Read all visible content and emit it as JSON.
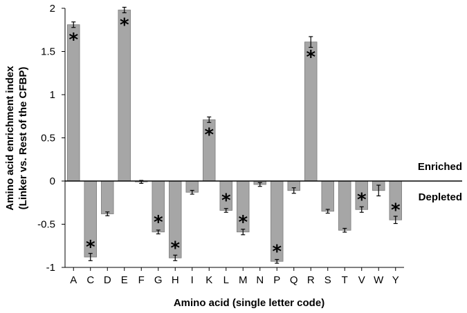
{
  "chart_data": {
    "type": "bar",
    "categories": [
      "A",
      "C",
      "D",
      "E",
      "F",
      "G",
      "H",
      "I",
      "K",
      "L",
      "M",
      "N",
      "P",
      "Q",
      "R",
      "S",
      "T",
      "V",
      "W",
      "Y"
    ],
    "values": [
      1.81,
      -0.88,
      -0.38,
      1.98,
      -0.01,
      -0.59,
      -0.89,
      -0.13,
      0.71,
      -0.34,
      -0.59,
      -0.04,
      -0.93,
      -0.11,
      1.61,
      -0.35,
      -0.57,
      -0.33,
      -0.11,
      -0.45
    ],
    "errors": [
      0.02,
      0.03,
      0.01,
      0.02,
      0.005,
      0.01,
      0.02,
      0.01,
      0.02,
      0.01,
      0.02,
      0.01,
      0.01,
      0.02,
      0.05,
      0.01,
      0.01,
      0.02,
      0.05,
      0.03
    ],
    "significant": [
      true,
      true,
      false,
      true,
      false,
      true,
      true,
      false,
      true,
      true,
      true,
      false,
      true,
      false,
      true,
      false,
      false,
      true,
      false,
      true
    ],
    "significance_marker": "*",
    "xlabel": "Amino acid (single letter code)",
    "ylabel_line1": "Amino acid enrichment index",
    "ylabel_line2": "(Linker vs. Rest of the CFBP)",
    "ylim": [
      -1,
      2
    ],
    "yticks": [
      -1,
      -0.5,
      0,
      0.5,
      1,
      1.5,
      2
    ],
    "ytick_labels": [
      "-1",
      "-0.5",
      "0",
      "0.5",
      "1",
      "1.5",
      "2"
    ],
    "annotations": {
      "enriched": "Enriched",
      "depleted": "Depleted"
    },
    "bar_color": "#a6a6a6",
    "bar_edge_color": "#7a7a7a",
    "grid": false
  }
}
